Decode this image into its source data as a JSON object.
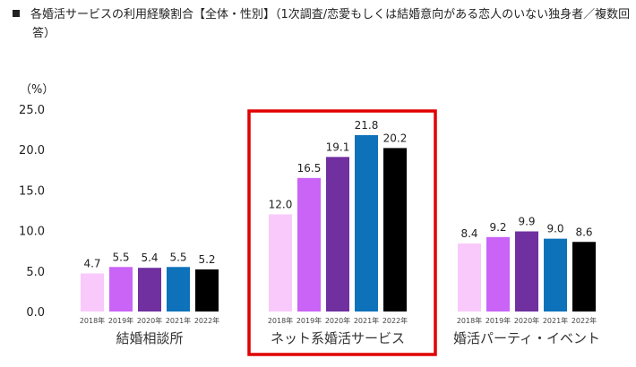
{
  "chart_data": {
    "type": "bar",
    "title_line1": "各婚活サービスの利用経験割合【全体・性別】（1次調査/恋愛もしくは結婚意向がある恋人のいない独身者／複数回",
    "title_line2": "答）",
    "ylabel": "（%）",
    "ylim": [
      0,
      25
    ],
    "yticks": [
      "0.0",
      "5.0",
      "10.0",
      "15.0",
      "20.0",
      "25.0"
    ],
    "grid": false,
    "years": [
      "2018年",
      "2019年",
      "2020年",
      "2021年",
      "2022年"
    ],
    "colors": [
      "#f9c9fb",
      "#c964f7",
      "#7030a0",
      "#0e72bb",
      "#000000"
    ],
    "highlight_color": "#e00000",
    "highlighted_group": "ネット系婚活サービス",
    "groups": [
      {
        "name": "結婚相談所",
        "values": [
          4.7,
          5.5,
          5.4,
          5.5,
          5.2
        ]
      },
      {
        "name": "ネット系婚活サービス",
        "values": [
          12.0,
          16.5,
          19.1,
          21.8,
          20.2
        ]
      },
      {
        "name": "婚活パーティ・イベント",
        "values": [
          8.4,
          9.2,
          9.9,
          9.0,
          8.6
        ]
      }
    ]
  }
}
